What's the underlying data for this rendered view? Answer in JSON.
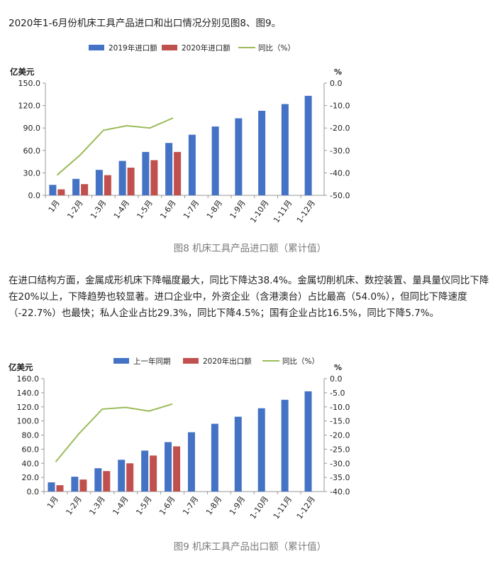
{
  "intro_text": "2020年1-6月份机床工具产品进口和出口情况分别见图8、图9。",
  "body_text": "在进口结构方面，金属成形机床下降幅度最大，同比下降达38.4%。金属切削机床、数控装置、量具量仪同比下降在20%以上，下降趋势也较显著。进口企业中，外资企业（含港澳台）占比最高（54.0%），但同比下降速度（-22.7%）也最快；私人企业占比29.3%，同比下降4.5%；国有企业占比16.5%，同比下降5.7%。",
  "colors": {
    "blue": "#4472C4",
    "red": "#C0504D",
    "green": "#9BBB59"
  },
  "chart_data": [
    {
      "type": "bar",
      "caption": "图8  机床工具产品进口额（累计值）",
      "left_axis_title": "亿美元",
      "right_axis_title": "%",
      "categories": [
        "1月",
        "1-2月",
        "1-3月",
        "1-4月",
        "1-5月",
        "1-6月",
        "1-7月",
        "1-8月",
        "1-9月",
        "1-10月",
        "1-11月",
        "1-12月"
      ],
      "series": [
        {
          "name": "2019年进口额",
          "type": "bar",
          "axis": "left",
          "color": "#4472C4",
          "values": [
            14,
            22,
            34,
            46,
            58,
            70,
            81,
            92,
            103,
            113,
            122,
            133
          ]
        },
        {
          "name": "2020年进口额",
          "type": "bar",
          "axis": "left",
          "color": "#C0504D",
          "values": [
            8,
            15,
            27,
            37,
            47,
            58,
            null,
            null,
            null,
            null,
            null,
            null
          ]
        },
        {
          "name": "同比（%）",
          "type": "line",
          "axis": "right",
          "color": "#9BBB59",
          "values": [
            -41,
            -32,
            -21,
            -19,
            -20,
            -15.5,
            null,
            null,
            null,
            null,
            null,
            null
          ]
        }
      ],
      "ylim_left": [
        0,
        150
      ],
      "yticks_left": [
        "0.0",
        "30.0",
        "60.0",
        "90.0",
        "120.0",
        "150.0"
      ],
      "ylim_right": [
        -50,
        0
      ],
      "yticks_right": [
        "-50.0",
        "-40.0",
        "-30.0",
        "-20.0",
        "-10.0",
        "0.0"
      ],
      "legend_position": "top"
    },
    {
      "type": "bar",
      "caption": "图9  机床工具产品出口额（累计值）",
      "left_axis_title": "亿美元",
      "right_axis_title": "%",
      "categories": [
        "1月",
        "1-2月",
        "1-3月",
        "1-4月",
        "1-5月",
        "1-6月",
        "1-7月",
        "1-8月",
        "1-9月",
        "1-10月",
        "1-11月",
        "1-12月"
      ],
      "series": [
        {
          "name": "上一年同期",
          "type": "bar",
          "axis": "left",
          "color": "#4472C4",
          "values": [
            13,
            21,
            33,
            45,
            58,
            70,
            84,
            96,
            106,
            118,
            130,
            142
          ]
        },
        {
          "name": "2020年出口额",
          "type": "bar",
          "axis": "left",
          "color": "#C0504D",
          "values": [
            9,
            17,
            29,
            40,
            51,
            64,
            null,
            null,
            null,
            null,
            null,
            null
          ]
        },
        {
          "name": "同比（%）",
          "type": "line",
          "axis": "right",
          "color": "#9BBB59",
          "values": [
            -29.5,
            -19.5,
            -10.8,
            -10.2,
            -11.5,
            -9.0,
            null,
            null,
            null,
            null,
            null,
            null
          ]
        }
      ],
      "ylim_left": [
        0,
        160
      ],
      "yticks_left": [
        "0.0",
        "20.0",
        "40.0",
        "60.0",
        "80.0",
        "100.0",
        "120.0",
        "140.0",
        "160.0"
      ],
      "ylim_right": [
        -40,
        0
      ],
      "yticks_right": [
        "-40.0",
        "-35.0",
        "-30.0",
        "-25.0",
        "-20.0",
        "-15.0",
        "-10.0",
        "-5.0",
        "0.0"
      ],
      "legend_position": "top"
    }
  ]
}
